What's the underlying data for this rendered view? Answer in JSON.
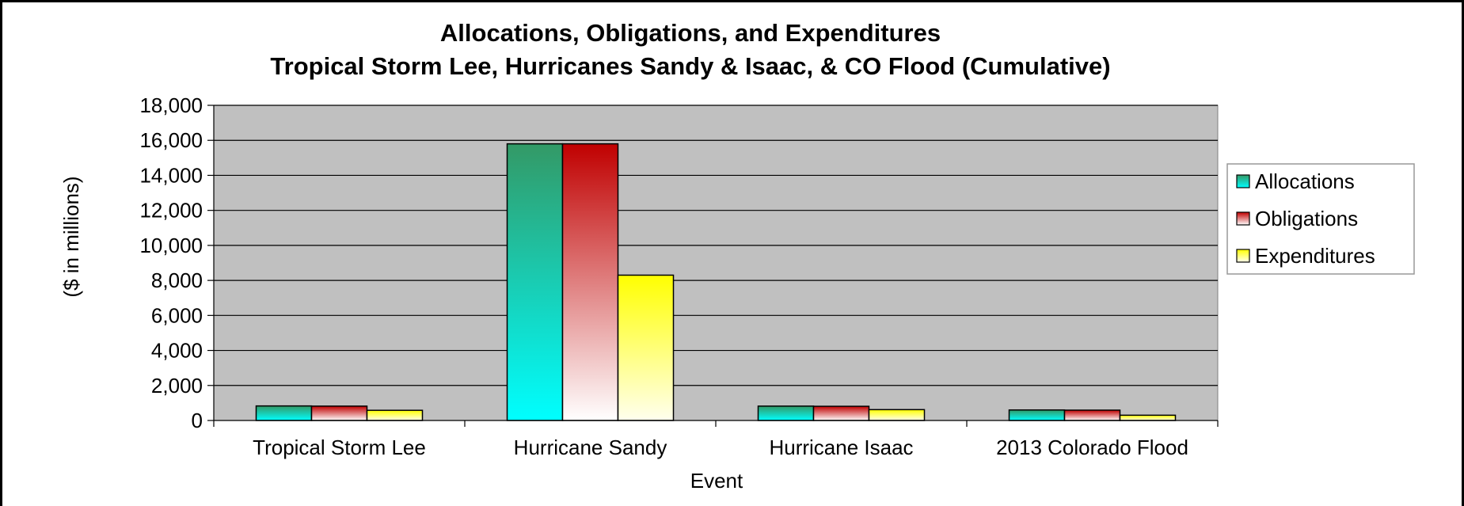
{
  "top_cut_text": "",
  "chart_data": {
    "type": "bar",
    "title_line1": "Allocations, Obligations, and Expenditures",
    "title_line2": "Tropical Storm Lee, Hurricanes Sandy & Isaac, & CO Flood (Cumulative)",
    "xlabel": "Event",
    "ylabel": "($ in millions)",
    "categories": [
      "Tropical Storm Lee",
      "Hurricane Sandy",
      "Hurricane Isaac",
      "2013 Colorado Flood"
    ],
    "ylim": [
      0,
      18000
    ],
    "yticks": [
      0,
      2000,
      4000,
      6000,
      8000,
      10000,
      12000,
      14000,
      16000,
      18000
    ],
    "ytick_labels": [
      "0",
      "2,000",
      "4,000",
      "6,000",
      "8,000",
      "10,000",
      "12,000",
      "14,000",
      "16,000",
      "18,000"
    ],
    "grid": true,
    "legend_position": "right",
    "plot_background": "#c0c0c0",
    "series": [
      {
        "name": "Allocations",
        "values": [
          830,
          15800,
          820,
          600
        ],
        "color_top": "#339966",
        "color_bottom": "#00ffff"
      },
      {
        "name": "Obligations",
        "values": [
          820,
          15800,
          810,
          590
        ],
        "color_top": "#c00000",
        "color_bottom": "#ffffff"
      },
      {
        "name": "Expenditures",
        "values": [
          580,
          8300,
          620,
          300
        ],
        "color_top": "#ffff00",
        "color_bottom": "#ffffee"
      }
    ]
  }
}
